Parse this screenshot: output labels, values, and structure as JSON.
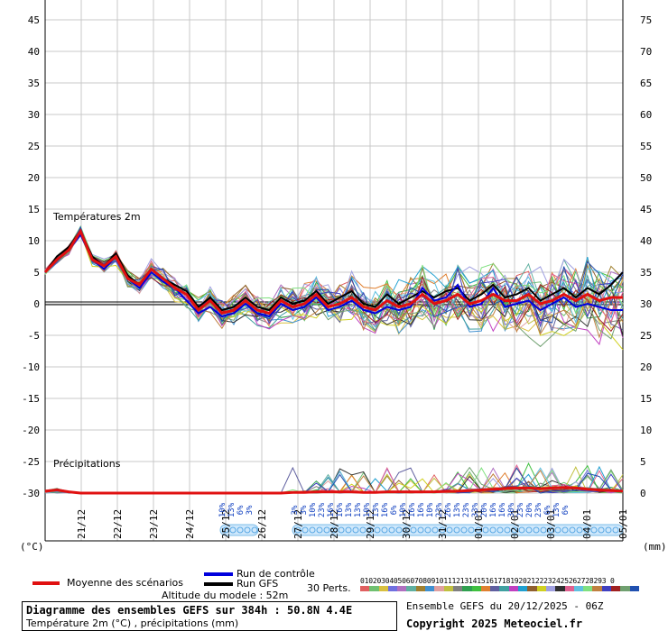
{
  "chart_data": {
    "type": "line",
    "title": "Diagramme des ensembles GEFS sur 384h : 50.8N 4.4E",
    "subtitle": "Température 2m (°C) , précipitations (mm)",
    "ylabel_left": "(°C)",
    "ylabel_right": "(mm)",
    "section_labels": [
      "Températures 2m",
      "Précipitations"
    ],
    "x_ticks": [
      "21/12",
      "22/12",
      "23/12",
      "24/12",
      "25/12",
      "26/12",
      "27/12",
      "28/12",
      "29/12",
      "30/12",
      "31/12",
      "01/01",
      "02/01",
      "03/01",
      "04/01",
      "05/01"
    ],
    "y_left_ticks": [
      "45",
      "40",
      "35",
      "30",
      "25",
      "20",
      "15",
      "10",
      "5",
      "0",
      "-5",
      "-10",
      "-15",
      "-20",
      "-25",
      "-30"
    ],
    "y_right_ticks": [
      "75",
      "70",
      "65",
      "60",
      "55",
      "50",
      "45",
      "40",
      "35",
      "30",
      "25",
      "20",
      "15",
      "10",
      "5",
      "0"
    ],
    "ylim_left": [
      -30,
      45
    ],
    "grid": true,
    "series": [
      {
        "name": "Moyenne des scénarios",
        "color": "#e01010",
        "values": [
          5,
          7,
          8.5,
          11.5,
          7,
          6,
          7.5,
          4,
          3,
          5.5,
          4,
          2.5,
          1.5,
          -1,
          0.5,
          -1.5,
          -1,
          0.5,
          -1,
          -1.5,
          0.5,
          -0.5,
          0,
          1.5,
          -0.5,
          0,
          1,
          -0.5,
          -1,
          0.5,
          -0.5,
          0,
          1.5,
          0,
          0.5,
          1.5,
          0,
          0.5,
          1.5,
          0.5,
          0.5,
          1.5,
          0,
          0.5,
          1.5,
          0.5,
          1.5,
          0.5,
          1,
          1
        ]
      },
      {
        "name": "Run de contrôle",
        "color": "#0000dd",
        "values": [
          5,
          7,
          8.5,
          11,
          7,
          5.5,
          7.5,
          4,
          2.5,
          5,
          3.5,
          2.5,
          0.5,
          -1.5,
          -0.5,
          -2,
          -1.5,
          0,
          -1.5,
          -2,
          0,
          -1,
          -0.5,
          1,
          -1,
          -0.5,
          0.5,
          -1,
          -1.5,
          -0.5,
          -1,
          -0.5,
          2.5,
          0.5,
          1,
          3,
          -0.5,
          0,
          2.5,
          -0.5,
          0,
          0.5,
          -1,
          0,
          1,
          -0.5,
          0,
          -0.5,
          -1,
          -1
        ]
      },
      {
        "name": "Run GFS",
        "color": "#000000",
        "values": [
          5,
          7.5,
          9,
          11.5,
          7.5,
          6,
          8,
          4.5,
          3,
          5.5,
          4,
          3,
          2,
          -0.5,
          1,
          -1,
          -0.5,
          1,
          -0.5,
          -1,
          1,
          0,
          0.5,
          2,
          0,
          1,
          2,
          0,
          -0.5,
          1.5,
          0,
          1,
          2,
          1,
          2,
          2.5,
          0.5,
          1.5,
          3,
          1,
          1.5,
          2.5,
          0.5,
          1.5,
          2.5,
          1,
          2.5,
          1.5,
          3,
          5
        ]
      }
    ],
    "precip_mean_mm": [
      0.3,
      0.5,
      0.2,
      0,
      0,
      0,
      0,
      0,
      0,
      0,
      0,
      0,
      0,
      0,
      0,
      0,
      0,
      0,
      0,
      0,
      0,
      0.1,
      0.1,
      0.2,
      0.2,
      0.2,
      0.2,
      0.1,
      0.1,
      0.2,
      0.2,
      0.2,
      0.2,
      0.2,
      0.3,
      0.3,
      0.4,
      0.5,
      0.6,
      0.7,
      0.8,
      0.8,
      0.7,
      0.8,
      0.9,
      0.8,
      0.6,
      0.5,
      0.4,
      0.3
    ],
    "precip_labels_a": [
      "10%",
      "13%",
      "6%",
      "3%"
    ],
    "precip_labels_b": [
      "3%",
      "3%",
      "10%",
      "23%",
      "16%",
      "16%",
      "13%",
      "13%",
      "10%",
      "13%",
      "16%",
      "6%",
      "10%",
      "16%",
      "16%",
      "10%",
      "23%",
      "26%",
      "13%",
      "23%",
      "33%",
      "20%",
      "16%",
      "16%",
      "30%",
      "23%",
      "20%",
      "23%",
      "6%",
      "13%",
      "6%"
    ]
  },
  "legend": {
    "moyenne": "Moyenne des scénarios",
    "controle": "Run de contrôle",
    "gfs": "Run GFS",
    "perts": "30 Perts.",
    "perts_numbers": "01020304050607080910111213141516171819202122232425262728293 0",
    "altitude": "Altitude du modele : 52m"
  },
  "footer": {
    "title": "Diagramme des ensembles GEFS sur 384h : 50.8N 4.4E",
    "subtitle": "Température 2m (°C) , précipitations (mm)",
    "ensemble": "Ensemble GEFS du 20/12/2025 - 06Z",
    "copyright": "Copyright 2025 Meteociel.fr"
  },
  "colors": {
    "perturbations": [
      "#e06060",
      "#70c070",
      "#d8c040",
      "#7070e0",
      "#b070c0",
      "#60b0a0",
      "#a08030",
      "#4090d0",
      "#e0a0a0",
      "#c0c040",
      "#808080",
      "#30a050",
      "#40c040",
      "#e08030",
      "#6060a0",
      "#40a0a0",
      "#c040c0",
      "#20a0d0",
      "#906030",
      "#d0d020",
      "#a0a0e0",
      "#303030",
      "#e06090",
      "#60c0e0",
      "#80e080",
      "#c08040",
      "#4040c0",
      "#a02020",
      "#70a070",
      "#2050b0"
    ]
  }
}
